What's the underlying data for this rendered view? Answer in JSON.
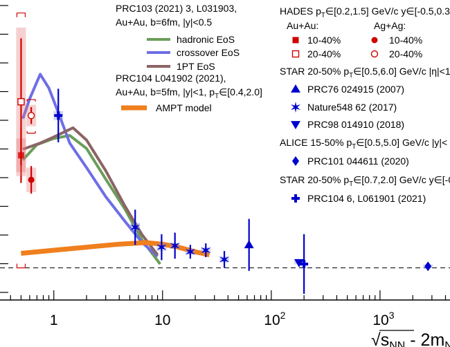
{
  "chart_data": {
    "type": "scatter",
    "xscale": "log",
    "xlim": [
      0.32,
      4400
    ],
    "ylim": [
      -0.021,
      0.175
    ],
    "xlabel_main": "√s",
    "xlabel_sub": "NN",
    "xlabel_tail": " - 2m",
    "xlabel_tail_sub": "N",
    "xticks": [
      {
        "value": 1,
        "label": "1"
      },
      {
        "value": 10,
        "label": "10"
      },
      {
        "value": 100,
        "label": "10",
        "sup": "2"
      },
      {
        "value": 1000,
        "label": "10",
        "sup": "3"
      }
    ],
    "zero_line": 0,
    "models_header": {
      "line1": "PRC103 (2021) 3, L031903,",
      "line2": "Au+Au, b=6fm, |y|<0.5",
      "line3": "PRC104 L041902 (2021),",
      "line4a": "Au+Au, b=5fm, |y|<1, p",
      "line4sub": "T",
      "line4b": "∈[0.4,2.0]"
    },
    "models": [
      {
        "name": "hadronic EoS",
        "color": "#6a9e5a",
        "width": 4,
        "x": [
          0.52,
          0.7,
          1.0,
          1.4,
          2.0,
          3.0,
          4.5,
          6.5,
          9.5
        ],
        "y": [
          0.0705,
          0.0805,
          0.0845,
          0.0865,
          0.078,
          0.058,
          0.0385,
          0.018,
          0.0025
        ]
      },
      {
        "name": "crossover EoS",
        "color": "#6e6ee6",
        "width": 4,
        "x": [
          0.52,
          0.6,
          0.75,
          0.9,
          1.1,
          1.4,
          2.0,
          3.0,
          4.5,
          6.5,
          9.0
        ],
        "y": [
          0.0975,
          0.1105,
          0.1265,
          0.1175,
          0.1015,
          0.0815,
          0.0655,
          0.0465,
          0.0305,
          0.0165,
          0.0075
        ]
      },
      {
        "name": "1PT EoS",
        "color": "#8b6464",
        "width": 4,
        "x": [
          0.52,
          0.75,
          1.0,
          1.5,
          2.0,
          3.0,
          4.5,
          6.5,
          9.0
        ],
        "y": [
          0.0775,
          0.0815,
          0.0855,
          0.0915,
          0.0835,
          0.0635,
          0.0405,
          0.0215,
          0.0085
        ]
      },
      {
        "name": "AMPT model",
        "color": "#f07f1e",
        "width": 7,
        "x": [
          0.5,
          1.0,
          2.0,
          4.0,
          7.0,
          10,
          14,
          20,
          27
        ],
        "y": [
          0.0095,
          0.0115,
          0.0135,
          0.0155,
          0.0165,
          0.0155,
          0.0135,
          0.0105,
          0.0085
        ]
      }
    ],
    "data_legend": {
      "hades_a": "HADES p",
      "hades_sub": "T",
      "hades_b": "∈[0.2,1.5] GeV/c y∈[-0.5,0.3",
      "auau": "Au+Au:",
      "agag": "Ag+Ag:",
      "c1040": "10-40%",
      "c2040": "20-40%",
      "star1_a": "STAR 20-50% p",
      "star1_sub": "T",
      "star1_b": "∈[0.5,6.0] GeV/c |η|<1",
      "prc76": "PRC76 024915 (2007)",
      "nature": "Nature548 62 (2017)",
      "prc98": "PRC98 014910 (2018)",
      "alice_a": "ALICE 15-50% p",
      "alice_sub": "T",
      "alice_b": "∈[0.5,5.0] GeV/c |y|<",
      "prc101": "PRC101 044611 (2020)",
      "star2_a": "STAR 20-50% p",
      "star2_sub": "T",
      "star2_b": "∈[0.7,2.0] GeV/c y∈[-0",
      "prc104": "PRC104 6, L061901 (2021)"
    },
    "series": [
      {
        "name": "HADES Au+Au 10-40%",
        "marker": "square-filled",
        "color": "#d00000",
        "points": [
          {
            "x": 0.5,
            "y": 0.0735,
            "yerr": 0.018,
            "box": [
              0.0,
              0.022
            ]
          }
        ]
      },
      {
        "name": "HADES Au+Au 20-40%",
        "marker": "square-open",
        "color": "#d00000",
        "points": [
          {
            "x": 0.5,
            "y": 0.1085,
            "yerr": 0.0415,
            "box": [
              0.007,
              0.083
            ]
          }
        ]
      },
      {
        "name": "HADES Ag+Ag 10-40%",
        "marker": "circle-filled",
        "color": "#d00000",
        "points": [
          {
            "x": 0.62,
            "y": 0.0575,
            "yerr": 0.009,
            "box": [
              0.0,
              0.016
            ]
          }
        ]
      },
      {
        "name": "HADES Ag+Ag 20-40%",
        "marker": "circle-open",
        "color": "#d00000",
        "points": [
          {
            "x": 0.62,
            "y": 0.0995,
            "yerr": 0.0055,
            "box": [
              0.0,
              0.014
            ]
          }
        ]
      },
      {
        "name": "PRC76 024915 (2007)",
        "marker": "triangle-up",
        "color": "#0000cc",
        "points": [
          {
            "x": 62.4,
            "y": 0.015,
            "yerr": 0.017,
            "box": [
              0.0,
              0.0
            ]
          }
        ]
      },
      {
        "name": "Nature548 62 (2017)",
        "marker": "star",
        "color": "#0000cc",
        "points": [
          {
            "x": 5.6,
            "y": 0.0265,
            "yerr": 0.0115,
            "box": [
              0.0,
              0.006
            ]
          },
          {
            "x": 9.8,
            "y": 0.0135,
            "yerr": 0.0085,
            "box": [
              0.0,
              0.005
            ]
          },
          {
            "x": 13.0,
            "y": 0.0145,
            "yerr": 0.0085,
            "box": [
              0.0,
              0.004
            ]
          },
          {
            "x": 18.0,
            "y": 0.0105,
            "yerr": 0.0045,
            "box": [
              0.0,
              0.004
            ]
          },
          {
            "x": 25.0,
            "y": 0.0115,
            "yerr": 0.0045,
            "box": [
              0.0,
              0.004
            ]
          },
          {
            "x": 37.0,
            "y": 0.0055,
            "yerr": 0.0055,
            "box": [
              0.0,
              0.004
            ]
          }
        ]
      },
      {
        "name": "PRC98 014910 (2018)",
        "marker": "triangle-down",
        "color": "#0000cc",
        "points": [
          {
            "x": 180,
            "y": 0.0035,
            "yerr": 0.0,
            "box": [
              0.0,
              0.0025
            ]
          }
        ]
      },
      {
        "name": "PRC101 044611 (2020)",
        "marker": "diamond",
        "color": "#0000cc",
        "points": [
          {
            "x": 2760,
            "y": 0.001,
            "yerr": 0.0,
            "box": [
              0.0,
              0.0025
            ]
          }
        ]
      },
      {
        "name": "PRC104 6, L061901 (2021)",
        "marker": "cross",
        "color": "#0000cc",
        "points": [
          {
            "x": 1.1,
            "y": 0.0995,
            "yerr": 0.0175,
            "box": [
              0.0,
              0.006
            ]
          },
          {
            "x": 200,
            "y": 0.0025,
            "yerr": 0.0195,
            "box": [
              0.0,
              0.0
            ]
          }
        ]
      }
    ]
  }
}
